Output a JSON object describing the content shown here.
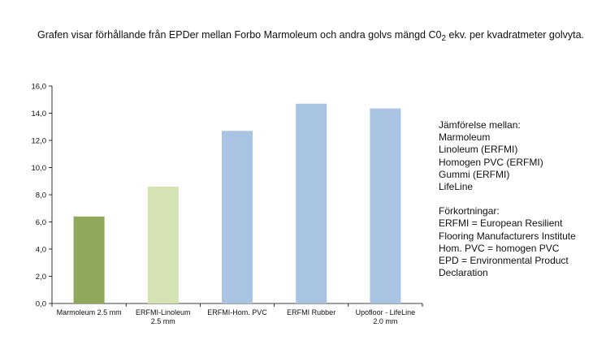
{
  "title": {
    "before": "Grafen visar förhållande från EPDer mellan Forbo Marmoleum och andra golvs mängd C0",
    "sub": "2",
    "after": " ekv. per kvadratmeter golvyta."
  },
  "chart_data": {
    "type": "bar",
    "title": "Grafen visar förhållande från EPDer mellan Forbo Marmoleum och andra golvs mängd C02 ekv. per kvadratmeter golvyta.",
    "xlabel": "",
    "ylabel": "",
    "ylim": [
      0,
      16
    ],
    "yticks": [
      "0,0",
      "2,0",
      "4,0",
      "6,0",
      "8,0",
      "10,0",
      "12,0",
      "14,0",
      "16,0"
    ],
    "grid": false,
    "legend": "none",
    "categories": [
      [
        "Marmoleum 2.5 mm"
      ],
      [
        "ERFMI-Linoleum",
        "2.5 mm"
      ],
      [
        "ERFMI-Hom. PVC"
      ],
      [
        "ERFMI Rubber"
      ],
      [
        "Upofloor - LifeLine",
        "2.0 mm"
      ]
    ],
    "values": [
      6.4,
      8.6,
      12.7,
      14.7,
      14.35
    ],
    "colors": [
      "#8fa85a",
      "#d5e2b3",
      "#a9c3e3",
      "#a9c3e3",
      "#a9c3e3"
    ]
  },
  "side": {
    "comparison": [
      "Jämförelse mellan:",
      "Marmoleum",
      "Linoleum (ERFMI)",
      "Homogen PVC (ERFMI)",
      "Gummi  (ERFMI)",
      "LifeLine"
    ],
    "abbreviations": [
      "Förkortningar:",
      "ERFMI = European Resilient",
      "Flooring Manufacturers Institute",
      "Hom. PVC = homogen PVC",
      "EPD = Environmental Product",
      "Declaration"
    ]
  }
}
